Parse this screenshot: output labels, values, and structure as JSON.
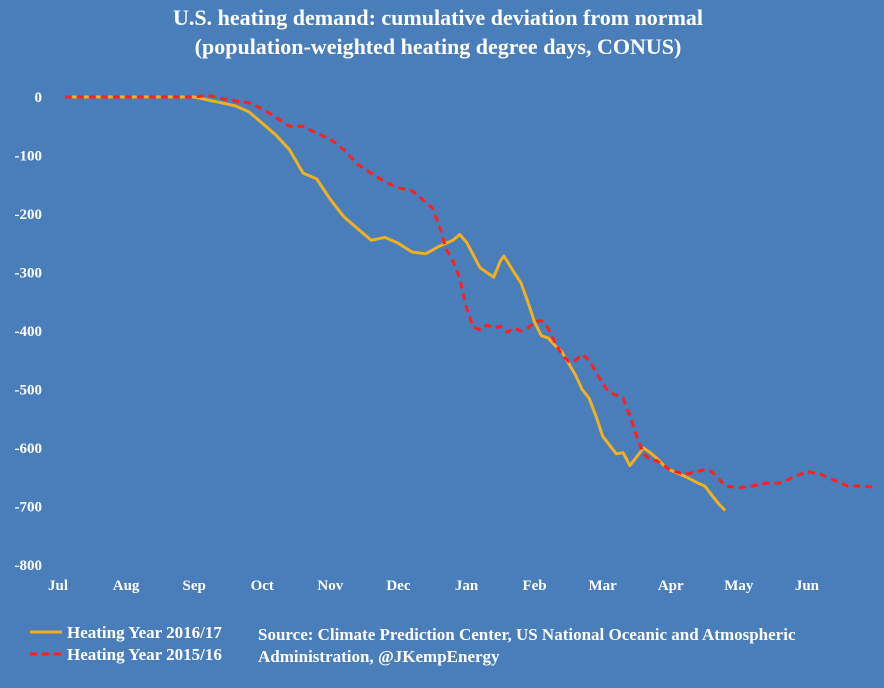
{
  "colors": {
    "background": "#4a7ebb",
    "series_2016": "#f2b01e",
    "series_2015": "#ff1f1f",
    "text": "#ffffff"
  },
  "chart_data": {
    "type": "line",
    "title": [
      "U.S. heating demand: cumulative deviation from normal",
      "(population-weighted heating degree days, CONUS)"
    ],
    "xlabel": "",
    "ylabel": "",
    "x_ticks": [
      "Jul",
      "Aug",
      "Sep",
      "Oct",
      "Nov",
      "Dec",
      "Jan",
      "Feb",
      "Mar",
      "Apr",
      "May",
      "Jun"
    ],
    "xlim": [
      0,
      12
    ],
    "ylim": [
      -800,
      0
    ],
    "y_ticks": [
      0,
      -100,
      -200,
      -300,
      -400,
      -500,
      -600,
      -700,
      -800
    ],
    "grid": false,
    "legend_position": "bottom-left",
    "source": "Source: Climate Prediction Center, US National Oceanic and Atmospheric Administration, @JKempEnergy",
    "series": [
      {
        "name": "Heating Year 2016/17",
        "color": "#f2b01e",
        "style": "solid",
        "points": [
          [
            0.1,
            0
          ],
          [
            1.0,
            0
          ],
          [
            2.0,
            0
          ],
          [
            2.4,
            -10
          ],
          [
            2.6,
            -15
          ],
          [
            2.8,
            -25
          ],
          [
            3.0,
            -45
          ],
          [
            3.2,
            -65
          ],
          [
            3.4,
            -90
          ],
          [
            3.6,
            -130
          ],
          [
            3.8,
            -140
          ],
          [
            4.0,
            -175
          ],
          [
            4.2,
            -205
          ],
          [
            4.4,
            -225
          ],
          [
            4.6,
            -245
          ],
          [
            4.8,
            -240
          ],
          [
            5.0,
            -250
          ],
          [
            5.2,
            -265
          ],
          [
            5.4,
            -268
          ],
          [
            5.6,
            -255
          ],
          [
            5.8,
            -245
          ],
          [
            5.9,
            -235
          ],
          [
            6.0,
            -248
          ],
          [
            6.1,
            -270
          ],
          [
            6.2,
            -292
          ],
          [
            6.3,
            -300
          ],
          [
            6.4,
            -308
          ],
          [
            6.5,
            -280
          ],
          [
            6.55,
            -272
          ],
          [
            6.7,
            -300
          ],
          [
            6.8,
            -318
          ],
          [
            6.9,
            -350
          ],
          [
            7.0,
            -385
          ],
          [
            7.1,
            -408
          ],
          [
            7.2,
            -412
          ],
          [
            7.3,
            -425
          ],
          [
            7.4,
            -435
          ],
          [
            7.5,
            -455
          ],
          [
            7.6,
            -475
          ],
          [
            7.7,
            -500
          ],
          [
            7.8,
            -515
          ],
          [
            7.9,
            -545
          ],
          [
            8.0,
            -580
          ],
          [
            8.1,
            -595
          ],
          [
            8.2,
            -610
          ],
          [
            8.3,
            -608
          ],
          [
            8.4,
            -630
          ],
          [
            8.5,
            -615
          ],
          [
            8.6,
            -600
          ],
          [
            8.7,
            -608
          ],
          [
            8.8,
            -618
          ],
          [
            8.9,
            -630
          ],
          [
            9.0,
            -638
          ],
          [
            9.2,
            -648
          ],
          [
            9.4,
            -660
          ],
          [
            9.5,
            -665
          ],
          [
            9.6,
            -680
          ],
          [
            9.7,
            -695
          ],
          [
            9.8,
            -707
          ]
        ]
      },
      {
        "name": "Heating Year 2015/16",
        "color": "#ff1f1f",
        "style": "dashed",
        "points": [
          [
            0.1,
            0
          ],
          [
            1.0,
            0
          ],
          [
            2.0,
            0
          ],
          [
            2.2,
            3
          ],
          [
            2.5,
            -5
          ],
          [
            2.8,
            -10
          ],
          [
            3.0,
            -20
          ],
          [
            3.2,
            -35
          ],
          [
            3.4,
            -50
          ],
          [
            3.6,
            -50
          ],
          [
            3.8,
            -62
          ],
          [
            4.0,
            -72
          ],
          [
            4.2,
            -90
          ],
          [
            4.4,
            -115
          ],
          [
            4.6,
            -130
          ],
          [
            4.8,
            -145
          ],
          [
            5.0,
            -155
          ],
          [
            5.2,
            -160
          ],
          [
            5.3,
            -170
          ],
          [
            5.5,
            -190
          ],
          [
            5.6,
            -220
          ],
          [
            5.7,
            -260
          ],
          [
            5.8,
            -280
          ],
          [
            5.9,
            -310
          ],
          [
            6.0,
            -360
          ],
          [
            6.1,
            -393
          ],
          [
            6.2,
            -398
          ],
          [
            6.3,
            -390
          ],
          [
            6.4,
            -395
          ],
          [
            6.5,
            -392
          ],
          [
            6.6,
            -402
          ],
          [
            6.7,
            -395
          ],
          [
            6.8,
            -400
          ],
          [
            6.9,
            -395
          ],
          [
            7.0,
            -385
          ],
          [
            7.1,
            -382
          ],
          [
            7.2,
            -395
          ],
          [
            7.3,
            -420
          ],
          [
            7.4,
            -440
          ],
          [
            7.5,
            -452
          ],
          [
            7.6,
            -450
          ],
          [
            7.7,
            -440
          ],
          [
            7.8,
            -450
          ],
          [
            7.9,
            -470
          ],
          [
            8.0,
            -490
          ],
          [
            8.1,
            -505
          ],
          [
            8.2,
            -510
          ],
          [
            8.3,
            -515
          ],
          [
            8.4,
            -545
          ],
          [
            8.5,
            -580
          ],
          [
            8.6,
            -610
          ],
          [
            8.7,
            -620
          ],
          [
            8.8,
            -622
          ],
          [
            8.9,
            -630
          ],
          [
            9.0,
            -638
          ],
          [
            9.2,
            -645
          ],
          [
            9.4,
            -640
          ],
          [
            9.5,
            -637
          ],
          [
            9.6,
            -640
          ],
          [
            9.7,
            -652
          ],
          [
            9.8,
            -665
          ],
          [
            10.0,
            -668
          ],
          [
            10.2,
            -665
          ],
          [
            10.4,
            -660
          ],
          [
            10.6,
            -660
          ],
          [
            10.8,
            -650
          ],
          [
            11.0,
            -640
          ],
          [
            11.2,
            -645
          ],
          [
            11.4,
            -655
          ],
          [
            11.6,
            -665
          ],
          [
            11.8,
            -665
          ],
          [
            12.0,
            -667
          ]
        ]
      }
    ]
  }
}
